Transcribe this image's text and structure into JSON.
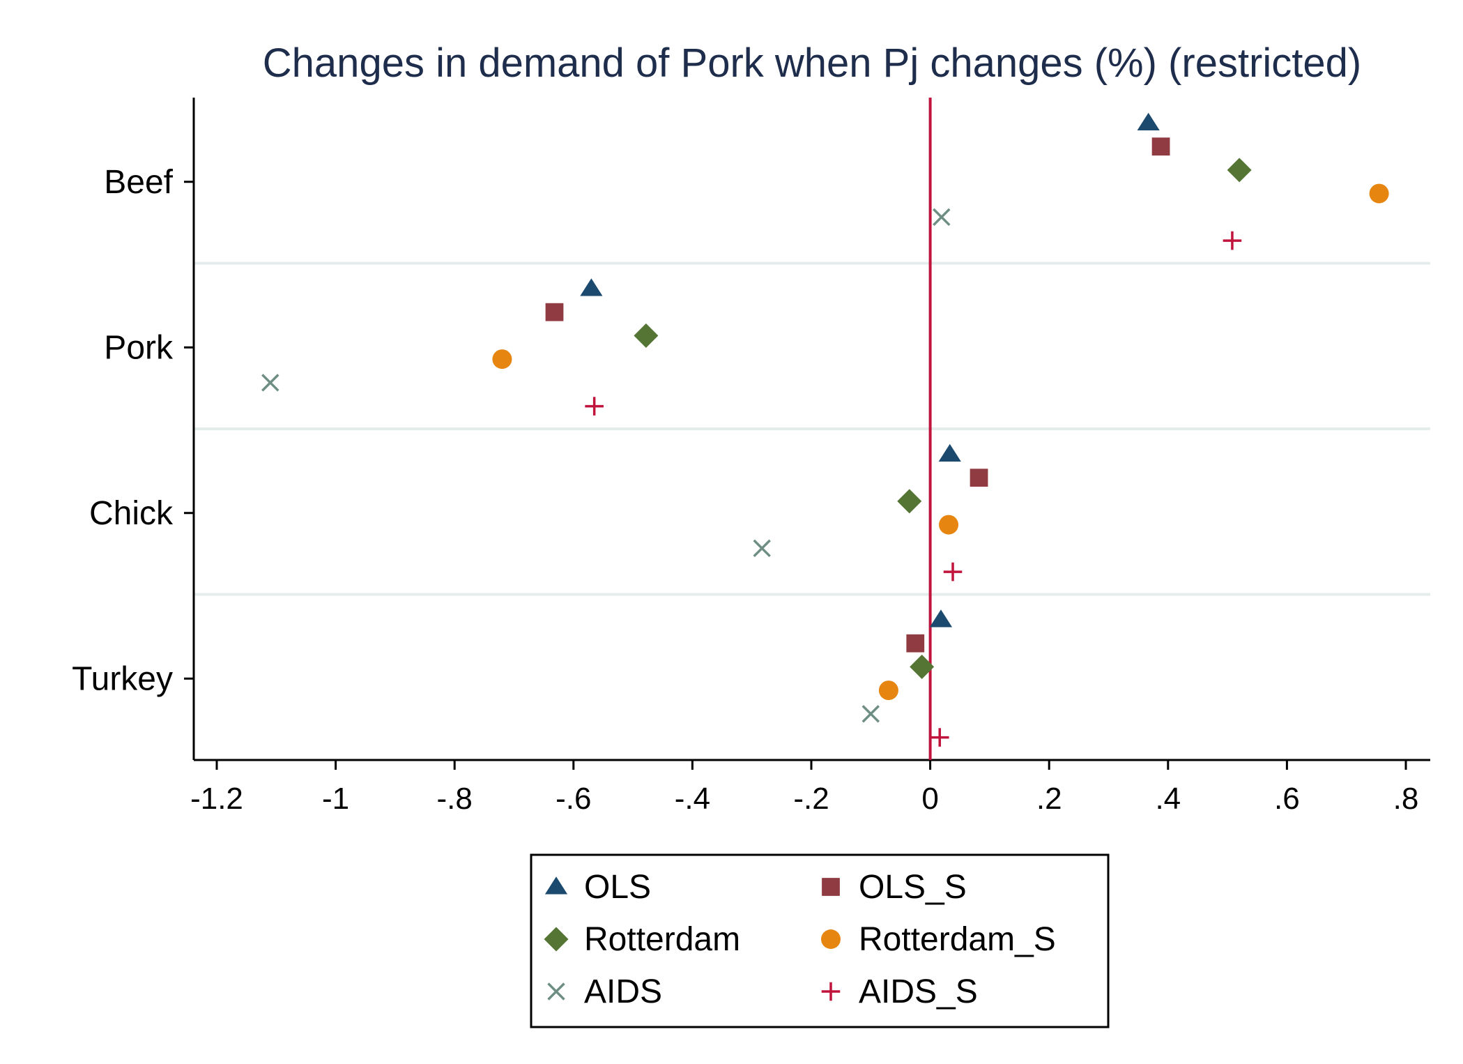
{
  "chart_data": {
    "type": "scatter",
    "title": "Changes in demand of Pork when Pj changes (%) (restricted)",
    "xlabel": "",
    "ylabel": "",
    "xlim": [
      -1.24,
      0.84
    ],
    "xticks": [
      -1.2,
      -1.0,
      -0.8,
      -0.6,
      -0.4,
      -0.2,
      0,
      0.2,
      0.4,
      0.6,
      0.8
    ],
    "xtick_labels": [
      "-1.2",
      "-1",
      "-.8",
      "-.6",
      "-.4",
      "-.2",
      "0",
      ".2",
      ".4",
      ".6",
      ".8"
    ],
    "categories": [
      "Beef",
      "Pork",
      "Chick",
      "Turkey"
    ],
    "reference_line": {
      "x": 0,
      "color": "#c0143c"
    },
    "grid": "horizontal separators between categories",
    "legend_position": "bottom",
    "series": [
      {
        "name": "OLS",
        "marker": "triangle",
        "color": "#1b4a6e",
        "values": [
          0.367,
          -0.57,
          0.033,
          0.018
        ]
      },
      {
        "name": "OLS_S",
        "marker": "square",
        "color": "#903a41",
        "values": [
          0.388,
          -0.632,
          0.082,
          -0.025
        ]
      },
      {
        "name": "Rotterdam",
        "marker": "diamond",
        "color": "#557534",
        "values": [
          0.52,
          -0.478,
          -0.035,
          -0.014
        ]
      },
      {
        "name": "Rotterdam_S",
        "marker": "circle",
        "color": "#e68510",
        "values": [
          0.755,
          -0.72,
          0.031,
          -0.07
        ]
      },
      {
        "name": "AIDS",
        "marker": "x",
        "color": "#6e8e84",
        "values": [
          0.019,
          -1.11,
          -0.283,
          -0.1
        ]
      },
      {
        "name": "AIDS_S",
        "marker": "plus",
        "color": "#c0143c",
        "values": [
          0.508,
          -0.565,
          0.038,
          0.016
        ]
      }
    ]
  }
}
